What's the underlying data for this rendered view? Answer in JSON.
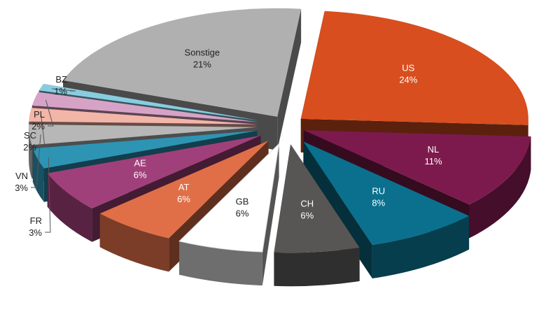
{
  "chart_data": {
    "type": "pie",
    "style": "3d-exploded",
    "title": "",
    "slices": [
      {
        "label": "US",
        "value": 24,
        "value_label": "24%",
        "color": "#d84e1e",
        "text": "light"
      },
      {
        "label": "NL",
        "value": 11,
        "value_label": "11%",
        "color": "#7d1a4d",
        "text": "light"
      },
      {
        "label": "RU",
        "value": 8,
        "value_label": "8%",
        "color": "#0a708d",
        "text": "light"
      },
      {
        "label": "CH",
        "value": 6,
        "value_label": "6%",
        "color": "#585555",
        "text": "light"
      },
      {
        "label": "GB",
        "value": 6,
        "value_label": "6%",
        "color": "#ffffff",
        "text": "dark"
      },
      {
        "label": "AT",
        "value": 6,
        "value_label": "6%",
        "color": "#e06f48",
        "text": "light"
      },
      {
        "label": "AE",
        "value": 6,
        "value_label": "6%",
        "color": "#a0407a",
        "text": "light"
      },
      {
        "label": "FR",
        "value": 3,
        "value_label": "3%",
        "color": "#2e94b4",
        "text": "outside"
      },
      {
        "label": "VN",
        "value": 3,
        "value_label": "3%",
        "color": "#b7b7b7",
        "text": "outside"
      },
      {
        "label": "SC",
        "value": 2,
        "value_label": "2%",
        "color": "#f3b5a8",
        "text": "outside"
      },
      {
        "label": "PL",
        "value": 2,
        "value_label": "2%",
        "color": "#d6a3c6",
        "text": "outside"
      },
      {
        "label": "BZ",
        "value": 1,
        "value_label": "1%",
        "color": "#88cddf",
        "text": "outside"
      },
      {
        "label": "Sonstige",
        "value": 21,
        "value_label": "21%",
        "color": "#b0b0b0",
        "text": "dark"
      }
    ]
  }
}
